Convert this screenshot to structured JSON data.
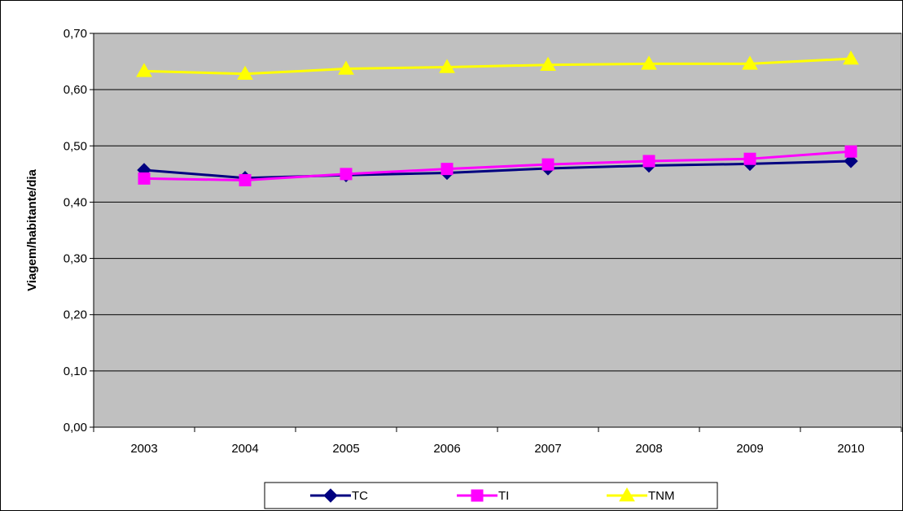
{
  "chart_data": {
    "type": "line",
    "title": "",
    "xlabel": "",
    "ylabel": "Viagem/habitante/dia",
    "categories": [
      "2003",
      "2004",
      "2005",
      "2006",
      "2007",
      "2008",
      "2009",
      "2010"
    ],
    "ylim": [
      0,
      0.7
    ],
    "yticks": [
      0,
      0.1,
      0.2,
      0.3,
      0.4,
      0.5,
      0.6,
      0.7
    ],
    "ytick_labels": [
      "0,00",
      "0,10",
      "0,20",
      "0,30",
      "0,40",
      "0,50",
      "0,60",
      "0,70"
    ],
    "grid": true,
    "plot_background": "#c0c0c0",
    "legend_position": "bottom",
    "series": [
      {
        "name": "TC",
        "color": "#000080",
        "marker": "diamond",
        "values": [
          0.457,
          0.443,
          0.448,
          0.452,
          0.46,
          0.465,
          0.468,
          0.473
        ]
      },
      {
        "name": "TI",
        "color": "#ff00ff",
        "marker": "square",
        "values": [
          0.442,
          0.439,
          0.45,
          0.459,
          0.467,
          0.473,
          0.477,
          0.49
        ]
      },
      {
        "name": "TNM",
        "color": "#ffff00",
        "marker": "triangle",
        "values": [
          0.633,
          0.628,
          0.637,
          0.64,
          0.644,
          0.646,
          0.646,
          0.655
        ]
      }
    ]
  }
}
